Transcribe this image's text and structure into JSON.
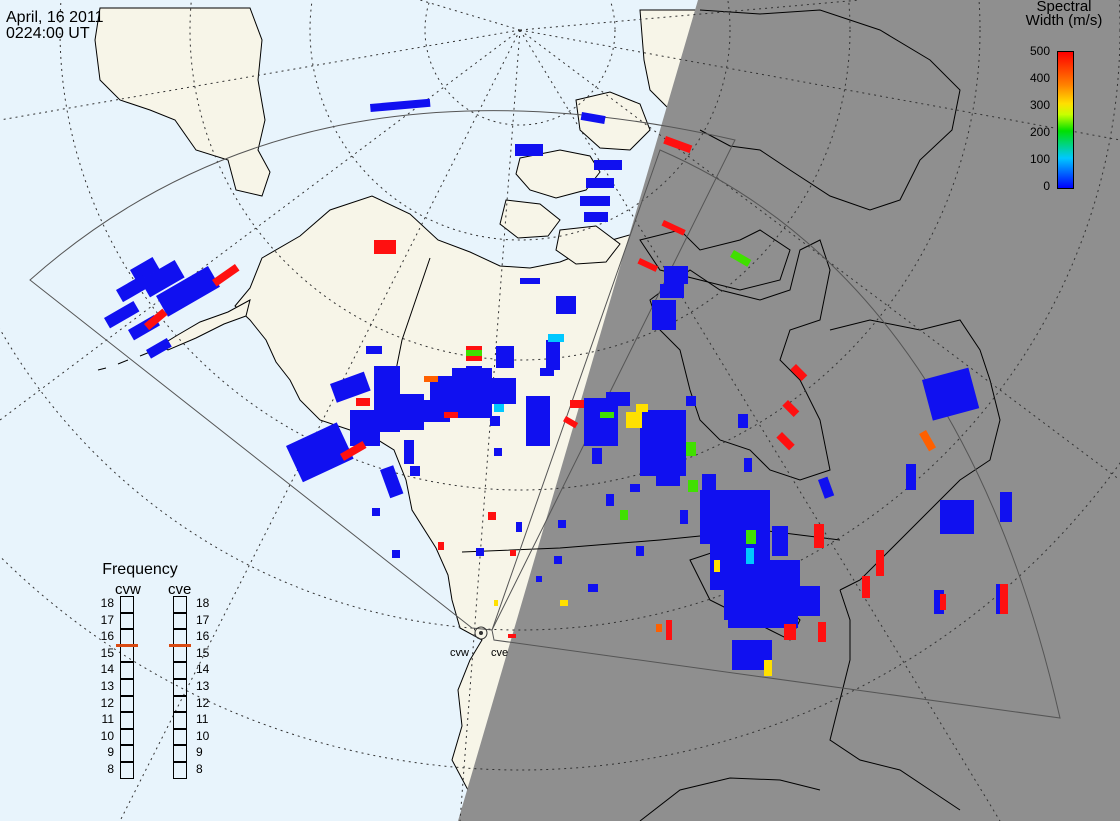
{
  "header": {
    "date": "April, 16 2011",
    "time": "0224:00 UT"
  },
  "colorbar": {
    "title_line1": "Spectral",
    "title_line2": "Width (m/s)",
    "ticks": [
      "500",
      "400",
      "300",
      "200",
      "100",
      "0"
    ],
    "range": [
      0,
      500
    ],
    "colors": [
      "#0000ff",
      "#00c8ff",
      "#00e000",
      "#c8ff00",
      "#ffe000",
      "#ff8000",
      "#ff0000"
    ]
  },
  "frequency_panel": {
    "title": "Frequency",
    "radars": [
      {
        "name": "cvw",
        "value_mhz": 15.5
      },
      {
        "name": "cve",
        "value_mhz": 15.5
      }
    ],
    "scale": [
      "18",
      "17",
      "16",
      "15",
      "14",
      "13",
      "12",
      "11",
      "10",
      "9",
      "8"
    ]
  },
  "sites": [
    {
      "name": "cvw"
    },
    {
      "name": "cve"
    }
  ],
  "map_colors": {
    "ocean_day": "#e8f4fc",
    "land_day": "#f7f5e8",
    "night": "#8f8f8f",
    "fov": "#555555",
    "grid": "#333333"
  },
  "echo_colors": {
    "low": "#1010f0",
    "cyan": "#00c8ff",
    "green": "#40e000",
    "yellow": "#ffe000",
    "orange": "#ff6000",
    "red": "#ff1010"
  }
}
